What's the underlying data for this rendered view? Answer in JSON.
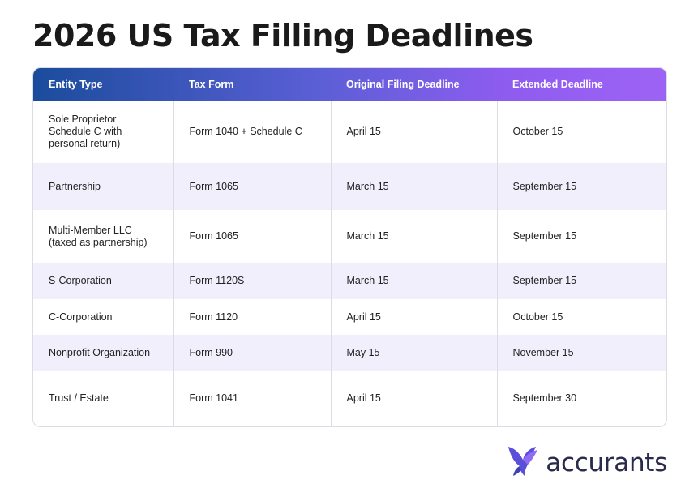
{
  "title": "2026 US Tax Filling Deadlines",
  "table": {
    "headers": [
      "Entity Type",
      "Tax Form",
      "Original Filing Deadline",
      "Extended Deadline"
    ],
    "rows": [
      [
        "Sole Proprietor Schedule C with personal return)",
        "Form 1040 + Schedule C",
        "April 15",
        "October 15"
      ],
      [
        "Partnership",
        "Form 1065",
        "March 15",
        "September 15"
      ],
      [
        "Multi-Member LLC (taxed as partnership)",
        "Form 1065",
        "March 15",
        "September 15"
      ],
      [
        "S-Corporation",
        "Form 1120S",
        "March 15",
        "September 15"
      ],
      [
        "C-Corporation",
        "Form 1120",
        "April 15",
        "October 15"
      ],
      [
        "Nonprofit Organization",
        "Form 990",
        "May 15",
        "November 15"
      ],
      [
        "Trust / Estate",
        "Form 1041",
        "April 15",
        "September 30"
      ]
    ]
  },
  "logo": {
    "text": "accurants",
    "icon": "bird-logo-icon",
    "colors": {
      "primary": "#6c4ee0",
      "secondary": "#3b3fb8"
    }
  },
  "colors": {
    "header_start": "#1b4c9c",
    "header_end": "#9d63f5",
    "row_alt": "#f1effc"
  }
}
